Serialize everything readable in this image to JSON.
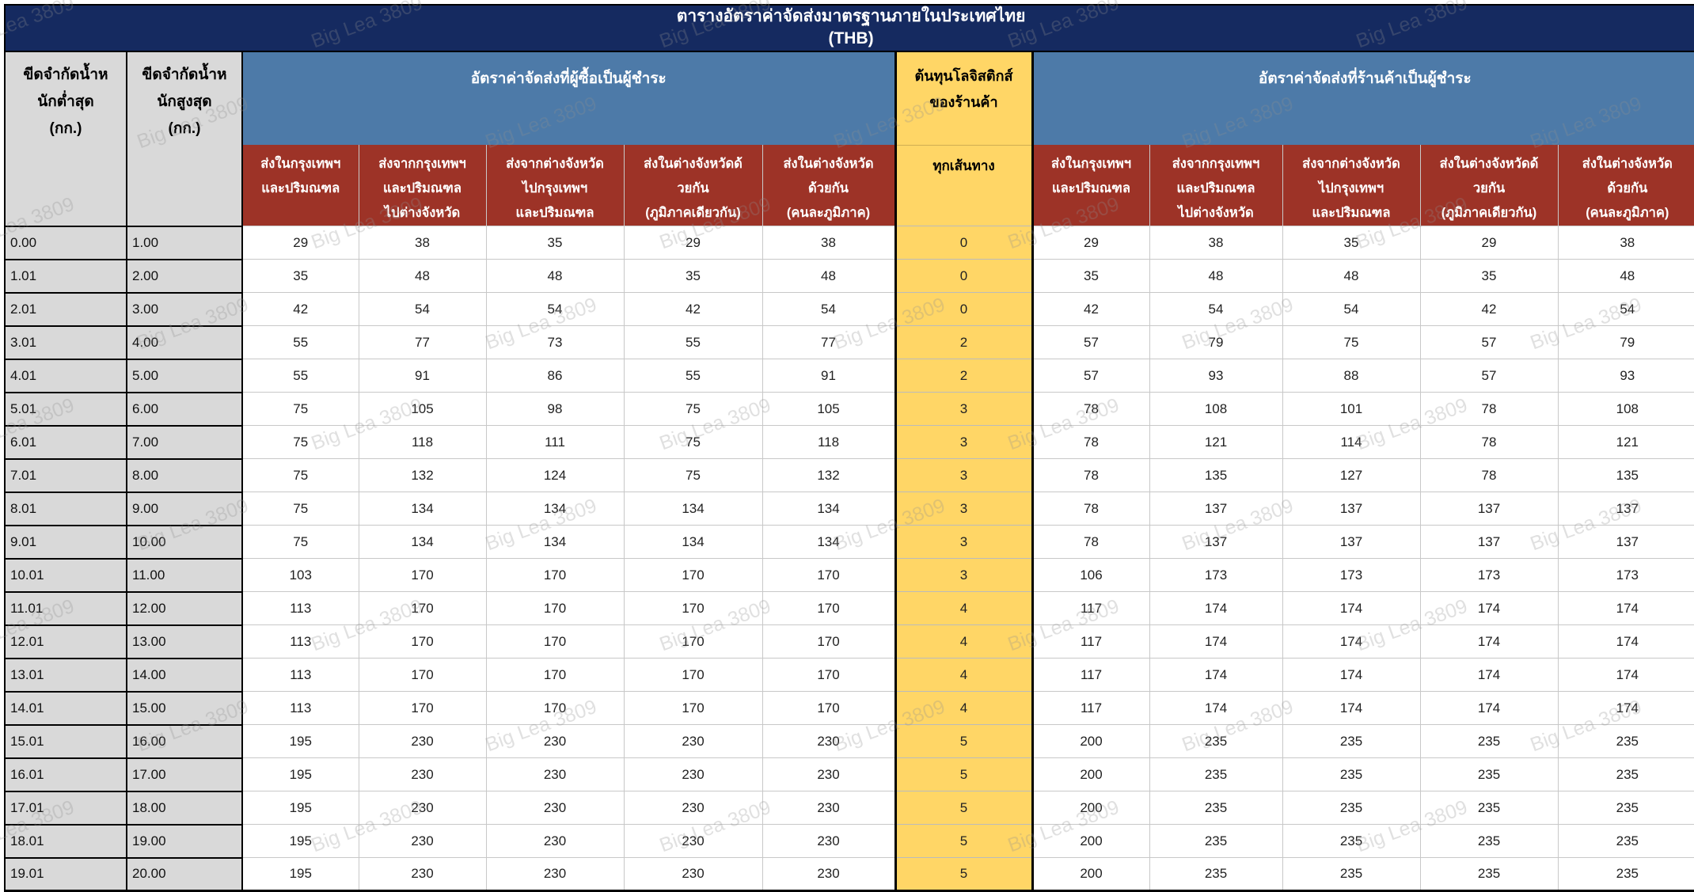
{
  "watermark": "Big Lea 3809",
  "title": {
    "line1": "ตารางอัตราค่าจัดส่งมาตรฐานภายในประเทศไทย",
    "line2": "(THB)"
  },
  "colors": {
    "title_navy": "#152a60",
    "group_steel_blue": "#4d7aa8",
    "subheader_brick_red": "#9d3327",
    "logistics_gold": "#ffd666",
    "weight_gray": "#d9d9d9"
  },
  "header": {
    "min_weight": "ขีดจำกัดน้ำห\nนักต่ำสุด\n(กก.)",
    "max_weight": "ขีดจำกัดน้ำห\nนักสูงสุด\n(กก.)",
    "buyer_pays_group": "อัตราค่าจัดส่งที่ผู้ซื้อเป็นผู้ชำระ",
    "logistics_cost_group": "ต้นทุนโลจิสติกส์\nของร้านค้า",
    "seller_pays_group": "อัตราค่าจัดส่งที่ร้านค้าเป็นผู้ชำระ",
    "all_routes": "ทุกเส้นทาง",
    "routes": [
      "ส่งในกรุงเทพฯ\nและปริมณฑล",
      "ส่งจากกรุงเทพฯ\nและปริมณฑล\nไปต่างจังหวัด",
      "ส่งจากต่างจังหวัด\nไปกรุงเทพฯ\nและปริมณฑล",
      "ส่งในต่างจังหวัดด้\nวยกัน\n(ภูมิภาคเดียวกัน)",
      "ส่งในต่างจังหวัด\nด้วยกัน\n(คนละภูมิภาค)"
    ]
  },
  "table": {
    "rows": [
      [
        "0.00",
        "1.00",
        29,
        38,
        35,
        29,
        38,
        0,
        29,
        38,
        35,
        29,
        38
      ],
      [
        "1.01",
        "2.00",
        35,
        48,
        48,
        35,
        48,
        0,
        35,
        48,
        48,
        35,
        48
      ],
      [
        "2.01",
        "3.00",
        42,
        54,
        54,
        42,
        54,
        0,
        42,
        54,
        54,
        42,
        54
      ],
      [
        "3.01",
        "4.00",
        55,
        77,
        73,
        55,
        77,
        2,
        57,
        79,
        75,
        57,
        79
      ],
      [
        "4.01",
        "5.00",
        55,
        91,
        86,
        55,
        91,
        2,
        57,
        93,
        88,
        57,
        93
      ],
      [
        "5.01",
        "6.00",
        75,
        105,
        98,
        75,
        105,
        3,
        78,
        108,
        101,
        78,
        108
      ],
      [
        "6.01",
        "7.00",
        75,
        118,
        111,
        75,
        118,
        3,
        78,
        121,
        114,
        78,
        121
      ],
      [
        "7.01",
        "8.00",
        75,
        132,
        124,
        75,
        132,
        3,
        78,
        135,
        127,
        78,
        135
      ],
      [
        "8.01",
        "9.00",
        75,
        134,
        134,
        134,
        134,
        3,
        78,
        137,
        137,
        137,
        137
      ],
      [
        "9.01",
        "10.00",
        75,
        134,
        134,
        134,
        134,
        3,
        78,
        137,
        137,
        137,
        137
      ],
      [
        "10.01",
        "11.00",
        103,
        170,
        170,
        170,
        170,
        3,
        106,
        173,
        173,
        173,
        173
      ],
      [
        "11.01",
        "12.00",
        113,
        170,
        170,
        170,
        170,
        4,
        117,
        174,
        174,
        174,
        174
      ],
      [
        "12.01",
        "13.00",
        113,
        170,
        170,
        170,
        170,
        4,
        117,
        174,
        174,
        174,
        174
      ],
      [
        "13.01",
        "14.00",
        113,
        170,
        170,
        170,
        170,
        4,
        117,
        174,
        174,
        174,
        174
      ],
      [
        "14.01",
        "15.00",
        113,
        170,
        170,
        170,
        170,
        4,
        117,
        174,
        174,
        174,
        174
      ],
      [
        "15.01",
        "16.00",
        195,
        230,
        230,
        230,
        230,
        5,
        200,
        235,
        235,
        235,
        235
      ],
      [
        "16.01",
        "17.00",
        195,
        230,
        230,
        230,
        230,
        5,
        200,
        235,
        235,
        235,
        235
      ],
      [
        "17.01",
        "18.00",
        195,
        230,
        230,
        230,
        230,
        5,
        200,
        235,
        235,
        235,
        235
      ],
      [
        "18.01",
        "19.00",
        195,
        230,
        230,
        230,
        230,
        5,
        200,
        235,
        235,
        235,
        235
      ],
      [
        "19.01",
        "20.00",
        195,
        230,
        230,
        230,
        230,
        5,
        200,
        235,
        235,
        235,
        235
      ]
    ]
  }
}
